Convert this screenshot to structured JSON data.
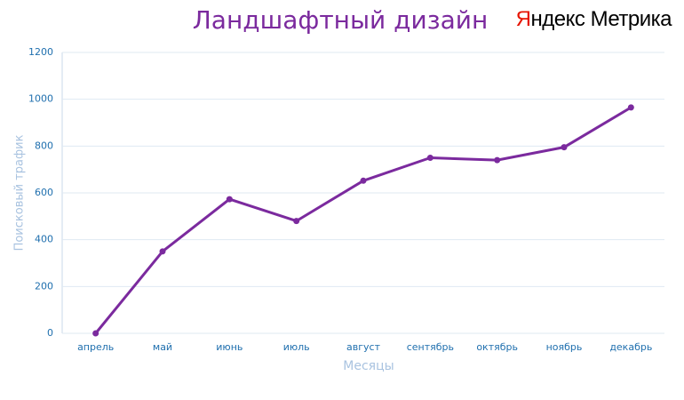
{
  "chart_data": {
    "type": "line",
    "title": "Ландшафтный дизайн",
    "logo": {
      "brand": "Яндекс",
      "product": "Метрика"
    },
    "xlabel": "Месяцы",
    "ylabel": "Поисковый трафик",
    "categories": [
      "апрель",
      "май",
      "июнь",
      "июль",
      "август",
      "сентябрь",
      "октябрь",
      "ноябрь",
      "декабрь"
    ],
    "series": [
      {
        "color": "#7b2a9e",
        "values": [
          0,
          350,
          573,
          480,
          652,
          750,
          740,
          795,
          965
        ]
      }
    ],
    "ylim": [
      0,
      1200
    ],
    "yticks": [
      0,
      200,
      400,
      600,
      800,
      1000,
      1200
    ],
    "grid": true
  }
}
